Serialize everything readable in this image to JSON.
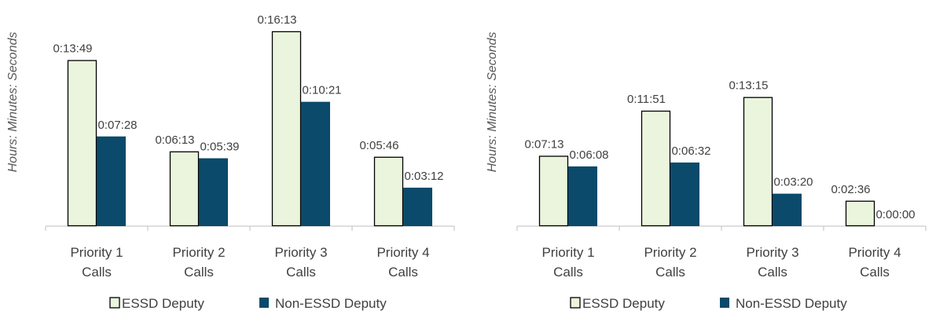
{
  "colors": {
    "essd": "#EBF5DD",
    "essd_border": "#000000",
    "non_essd": "#0B4A6A",
    "axis": "#BFBFBF"
  },
  "chart_data": [
    {
      "type": "bar",
      "ylabel": "Hours: Minutes: Seconds",
      "categories": [
        [
          "Priority 1",
          "Calls"
        ],
        [
          "Priority 2",
          "Calls"
        ],
        [
          "Priority 3",
          "Calls"
        ],
        [
          "Priority 4",
          "Calls"
        ]
      ],
      "series": [
        {
          "name": "ESSD Deputy",
          "values_seconds": [
            829,
            373,
            973,
            346
          ],
          "labels": [
            "0:13:49",
            "0:06:13",
            "0:16:13",
            "0:05:46"
          ]
        },
        {
          "name": "Non-ESSD Deputy",
          "values_seconds": [
            448,
            339,
            621,
            192
          ],
          "labels": [
            "0:07:28",
            "0:05:39",
            "0:10:21",
            "0:03:12"
          ]
        }
      ],
      "legend": "bottom"
    },
    {
      "type": "bar",
      "ylabel": "Hours: Minutes: Seconds",
      "categories": [
        [
          "Priority 1",
          "Calls"
        ],
        [
          "Priority 2",
          "Calls"
        ],
        [
          "Priority 3",
          "Calls"
        ],
        [
          "Priority 4",
          "Calls"
        ]
      ],
      "series": [
        {
          "name": "ESSD Deputy",
          "values_seconds": [
            433,
            711,
            795,
            156
          ],
          "labels": [
            "0:07:13",
            "0:11:51",
            "0:13:15",
            "0:02:36"
          ]
        },
        {
          "name": "Non-ESSD Deputy",
          "values_seconds": [
            368,
            392,
            200,
            0
          ],
          "labels": [
            "0:06:08",
            "0:06:32",
            "0:03:20",
            "0:00:00"
          ]
        }
      ],
      "legend": "bottom"
    }
  ]
}
